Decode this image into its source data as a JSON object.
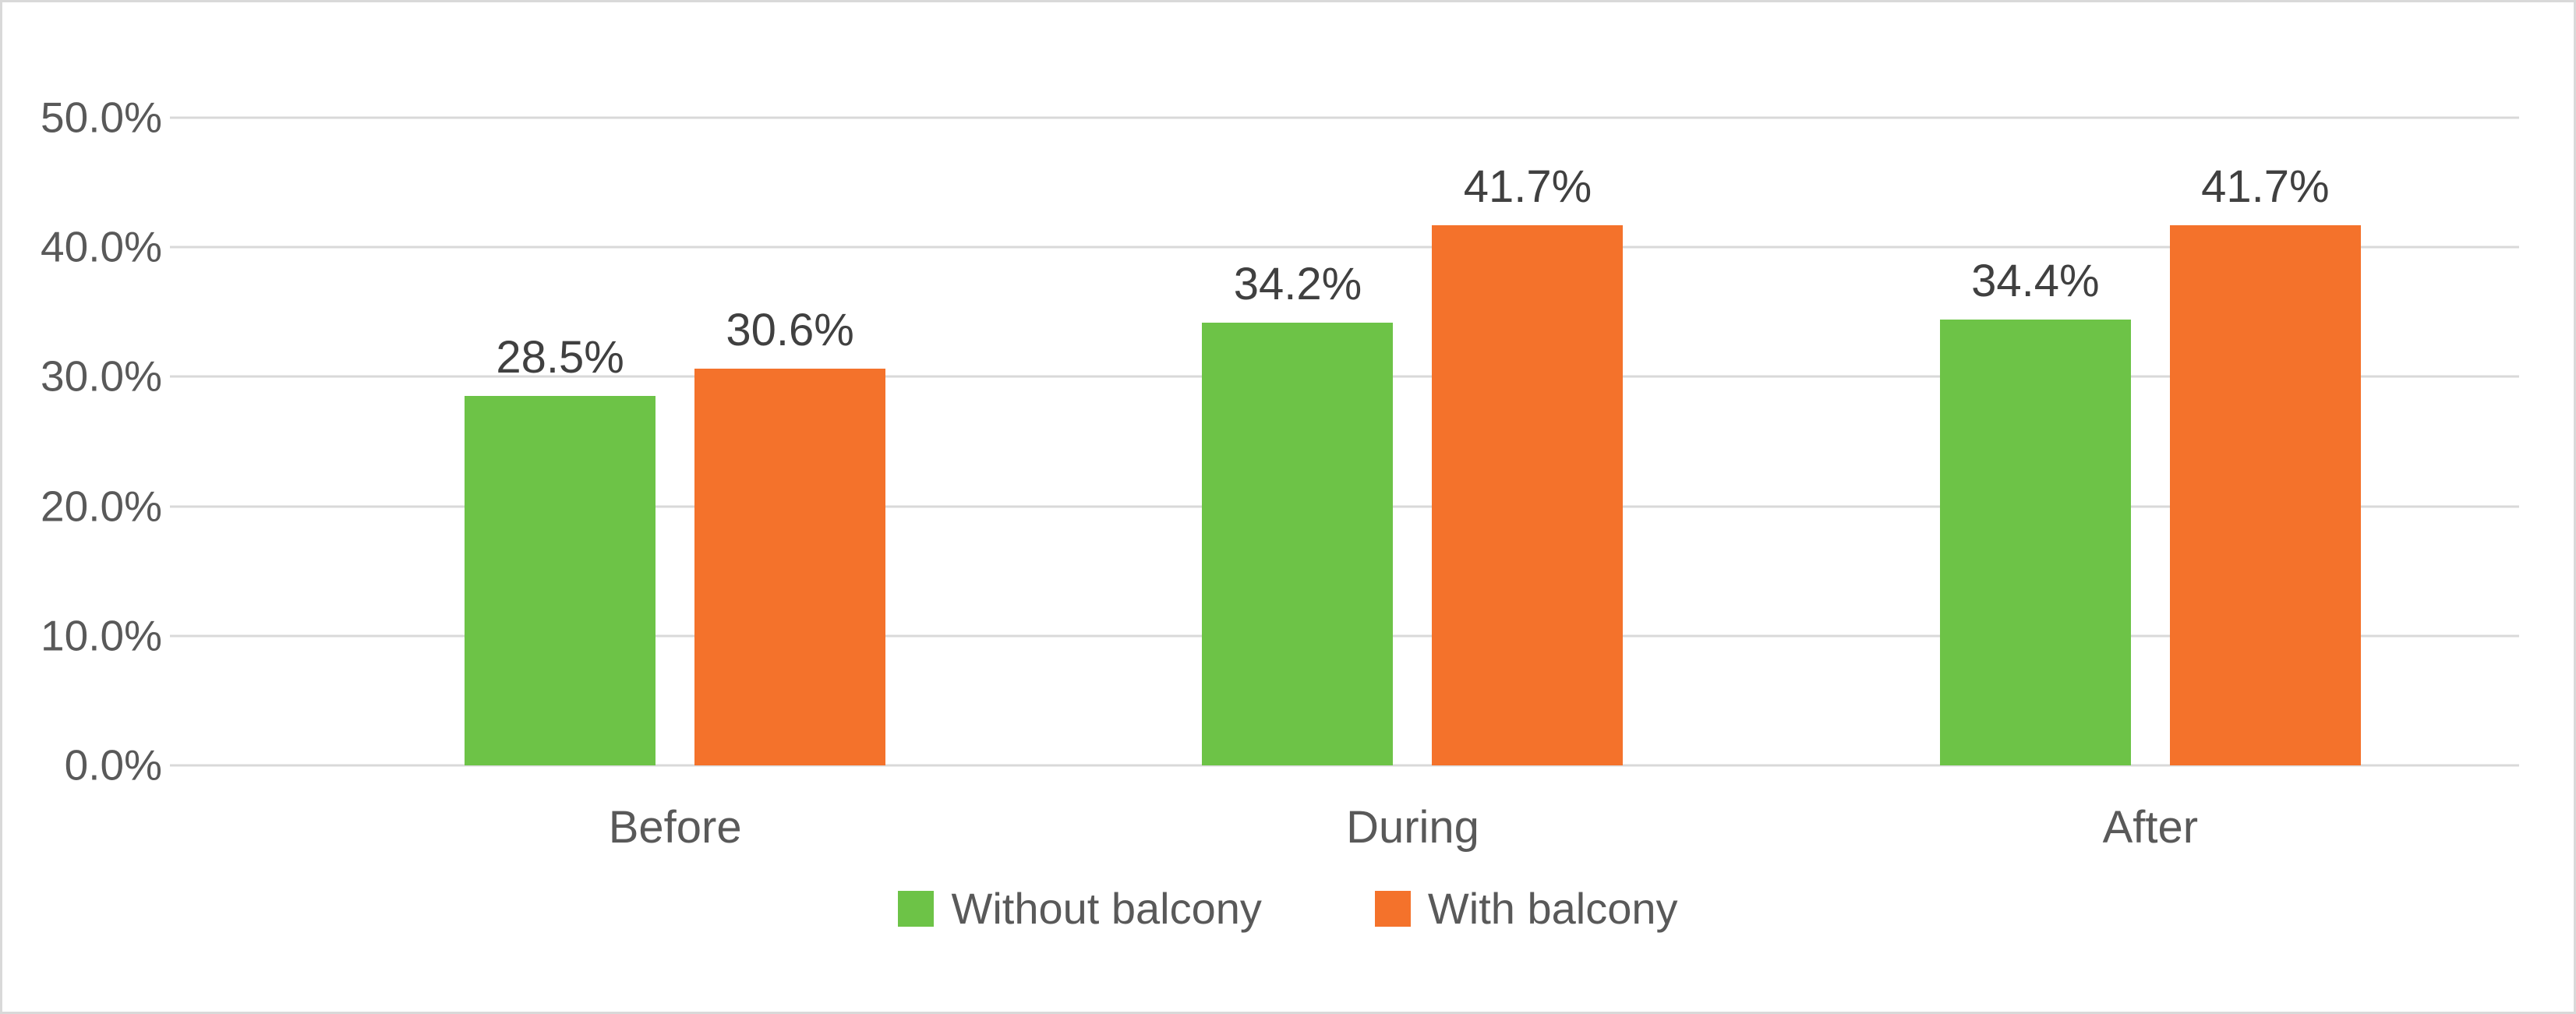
{
  "chart_data": {
    "type": "bar",
    "title": "",
    "xlabel": "",
    "ylabel": "",
    "categories": [
      "Before",
      "During",
      "After"
    ],
    "series": [
      {
        "name": "Without balcony",
        "color": "#6DC347",
        "values": [
          28.5,
          34.2,
          34.4
        ],
        "labels": [
          "28.5%",
          "34.2%",
          "34.4%"
        ]
      },
      {
        "name": "With balcony",
        "color": "#F4722B",
        "values": [
          30.6,
          41.7,
          41.7
        ],
        "labels": [
          "30.6%",
          "41.7%",
          "41.7%"
        ]
      }
    ],
    "ylim": [
      0,
      50
    ],
    "yticks": [
      {
        "value": 0,
        "label": "0.0%"
      },
      {
        "value": 10,
        "label": "10.0%"
      },
      {
        "value": 20,
        "label": "20.0%"
      },
      {
        "value": 30,
        "label": "30.0%"
      },
      {
        "value": 40,
        "label": "40.0%"
      },
      {
        "value": 50,
        "label": "50.0%"
      }
    ],
    "grid": true,
    "legend_position": "bottom"
  },
  "colors": {
    "background": "#FFFFFF",
    "frame_border": "#D9D9D9",
    "gridline": "#D9D9D9",
    "axis_text": "#595959",
    "data_label_text": "#404040"
  }
}
